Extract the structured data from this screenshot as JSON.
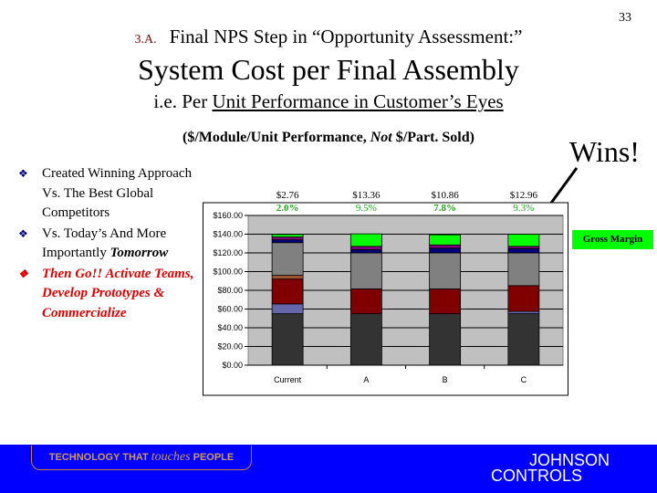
{
  "page_number": "33",
  "title": {
    "section": "3.A.",
    "line1": "Final NPS Step in “Opportunity Assessment:”",
    "line2": "System Cost per Final Assembly",
    "line3_prefix": "i.e. Per ",
    "line3_underlined": "Unit Performance in Customer’s Eyes",
    "subtitle_a": "($/Module/Unit Performance, ",
    "subtitle_not": "Not",
    "subtitle_b": " $/Part. Sold)"
  },
  "callout": "Wins!",
  "bullets": [
    {
      "text": "Created Winning Approach Vs. The Best Global Competitors",
      "icon": "diamond-bullet-icon"
    },
    {
      "text": "Vs. Today’s And More Importantly ",
      "emph": "Tomorrow",
      "icon": "diamond-bullet-icon"
    },
    {
      "text": "Then Go!! Activate Teams, Develop Prototypes & Commercialize",
      "icon": "diamond-bullet-icon",
      "color": "#e00000"
    }
  ],
  "chart_data": {
    "type": "bar",
    "stacked": true,
    "categories": [
      "Current",
      "A",
      "B",
      "C"
    ],
    "ylim": [
      0,
      160
    ],
    "yticks": [
      "$0.00",
      "$20.00",
      "$40.00",
      "$60.00",
      "$80.00",
      "$100.00",
      "$120.00",
      "$140.00",
      "$160.00"
    ],
    "grid": true,
    "series": [
      {
        "color": "#333333",
        "values": [
          55,
          55,
          55,
          55
        ]
      },
      {
        "color": "#6666aa",
        "values": [
          10.5,
          0,
          0,
          2.5
        ]
      },
      {
        "color": "#800000",
        "values": [
          26.5,
          26.5,
          26.5,
          27.5
        ]
      },
      {
        "color": "#a0522d",
        "values": [
          4,
          0,
          0,
          0
        ]
      },
      {
        "color": "#808080",
        "values": [
          35,
          38.5,
          38.5,
          35
        ]
      },
      {
        "color": "#000080",
        "values": [
          3,
          3.5,
          5,
          4.5
        ]
      },
      {
        "color": "#800080",
        "values": [
          3,
          3.5,
          3.5,
          2.5
        ]
      },
      {
        "name": "Gross Margin",
        "color": "#00ff00",
        "values": [
          2.76,
          13.36,
          10.86,
          12.96
        ]
      }
    ],
    "annotations": {
      "margin_dollars": [
        "$2.76",
        "$13.36",
        "$10.86",
        "$12.96"
      ],
      "margin_pct": [
        "2.0%",
        "9.5%",
        "7.8%",
        "9.3%"
      ],
      "pct_color": "#22aa22"
    },
    "legend": {
      "label": "Gross Margin",
      "placement": "right"
    }
  },
  "footer": {
    "tag_a": "TECHNOLOGY THAT ",
    "tag_em": "touches",
    "tag_b": " PEOPLE",
    "logo_line1": "JOHNSON",
    "logo_line2": "CONTROLS",
    "color": "#0000ff"
  }
}
